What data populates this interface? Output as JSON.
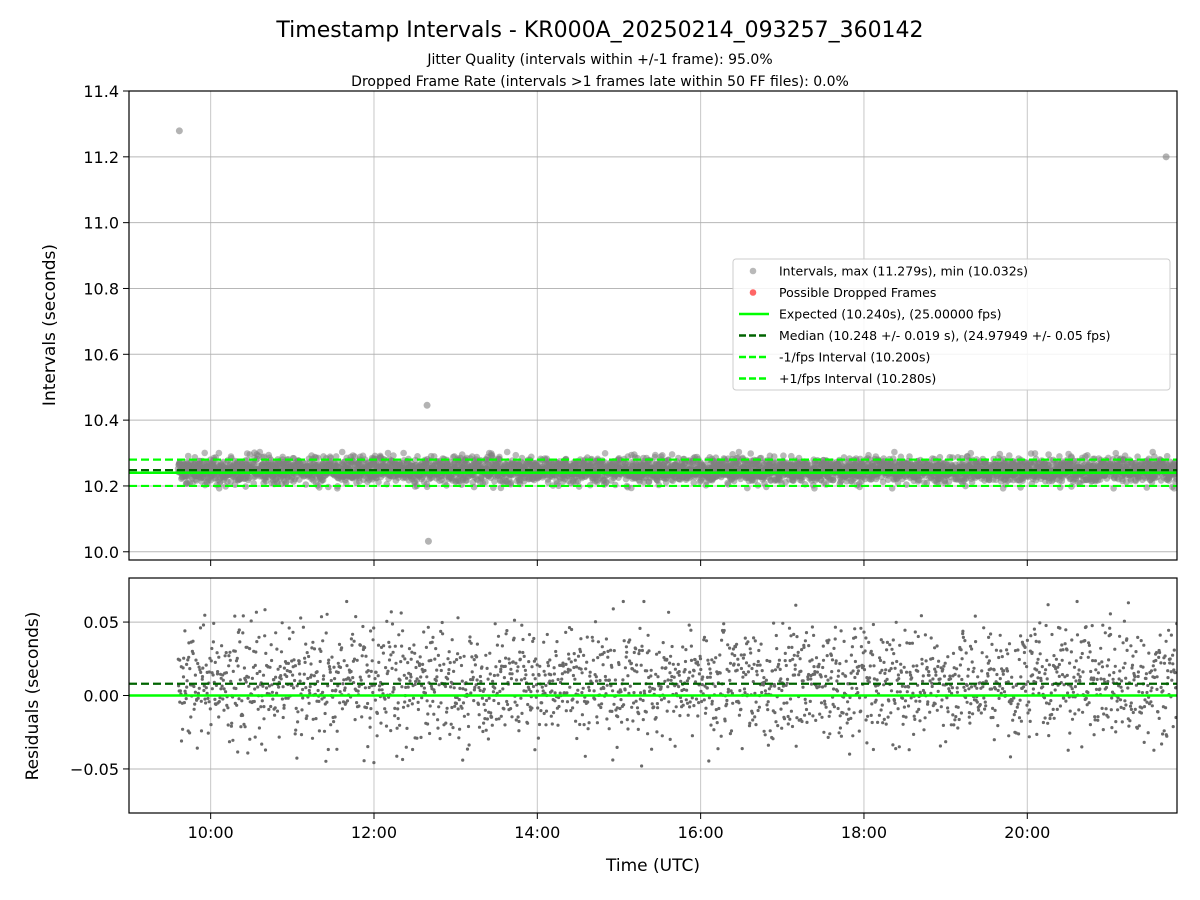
{
  "chart_data": [
    {
      "type": "scatter",
      "panel": "top",
      "title": "Timestamp Intervals - KR000A_20250214_093257_360142",
      "subtitle_lines": [
        "Jitter Quality (intervals within +/-1 frame): 95.0%",
        "Dropped Frame Rate (intervals >1 frames late within 50 FF files): 0.0%"
      ],
      "ylabel": "Intervals (seconds)",
      "xlim": [
        "09:00",
        "21:50"
      ],
      "ylim": [
        9.975,
        11.4
      ],
      "yticks": [
        10.0,
        10.2,
        10.4,
        10.6,
        10.8,
        11.0,
        11.2,
        11.4
      ],
      "ytick_labels": [
        "10.0",
        "10.2",
        "10.4",
        "10.6",
        "10.8",
        "11.0",
        "11.2",
        "11.4"
      ],
      "xticks": [
        "10:00",
        "12:00",
        "14:00",
        "16:00",
        "18:00",
        "20:00"
      ],
      "grid": true,
      "legend_position": "center-right",
      "legend": [
        {
          "label": "Intervals, max (11.279s), min (10.032s)",
          "kind": "marker",
          "color": "#808080"
        },
        {
          "label": "Possible Dropped Frames",
          "kind": "marker",
          "color": "#ff0000"
        },
        {
          "label": "Expected (10.240s), (25.00000 fps)",
          "kind": "line",
          "color": "#00ff00",
          "dash": "solid"
        },
        {
          "label": "Median (10.248 +/- 0.019 s), (24.97949 +/- 0.05 fps)",
          "kind": "line",
          "color": "#006400",
          "dash": "dashed"
        },
        {
          "label": "-1/fps Interval (10.200s)",
          "kind": "line",
          "color": "#00ff00",
          "dash": "dashed"
        },
        {
          "label": "+1/fps Interval (10.280s)",
          "kind": "line",
          "color": "#00ff00",
          "dash": "dashed"
        }
      ],
      "reference_lines": {
        "expected": 10.24,
        "median": 10.248,
        "minus_1_fps": 10.2,
        "plus_1_fps": 10.28
      },
      "series": [
        {
          "name": "Intervals",
          "color": "#808080",
          "bulk": {
            "t_start": "09:36",
            "t_end": "21:50",
            "y_center": 10.248,
            "y_spread": 0.019,
            "count": 4300
          },
          "outliers": [
            {
              "x": "09:37",
              "y": 11.279
            },
            {
              "x": "12:39",
              "y": 10.445
            },
            {
              "x": "12:40",
              "y": 10.032
            },
            {
              "x": "21:42",
              "y": 11.2
            }
          ]
        },
        {
          "name": "Possible Dropped Frames",
          "color": "#ff0000",
          "points": []
        }
      ]
    },
    {
      "type": "scatter",
      "panel": "bottom",
      "xlabel": "Time (UTC)",
      "ylabel": "Residuals (seconds)",
      "xlim": [
        "09:00",
        "21:50"
      ],
      "ylim": [
        -0.08,
        0.08
      ],
      "yticks": [
        -0.05,
        0.0,
        0.05
      ],
      "ytick_labels": [
        "−0.05",
        "0.00",
        "0.05"
      ],
      "xticks": [
        "10:00",
        "12:00",
        "14:00",
        "16:00",
        "18:00",
        "20:00"
      ],
      "grid": true,
      "reference_lines": {
        "zero": 0.0,
        "median_offset": 0.008
      },
      "series": [
        {
          "name": "Residuals",
          "color": "#696969",
          "bulk": {
            "t_start": "09:36",
            "t_end": "21:50",
            "y_center": 0.008,
            "y_spread": 0.019,
            "y_min": -0.048,
            "y_max": 0.064,
            "count": 2300
          }
        }
      ]
    }
  ],
  "colors": {
    "grid": "#b0b0b0",
    "expected": "#00ff00",
    "median": "#006400",
    "points": "#808080",
    "residual_points": "#696969",
    "dropped": "#ff0000"
  }
}
